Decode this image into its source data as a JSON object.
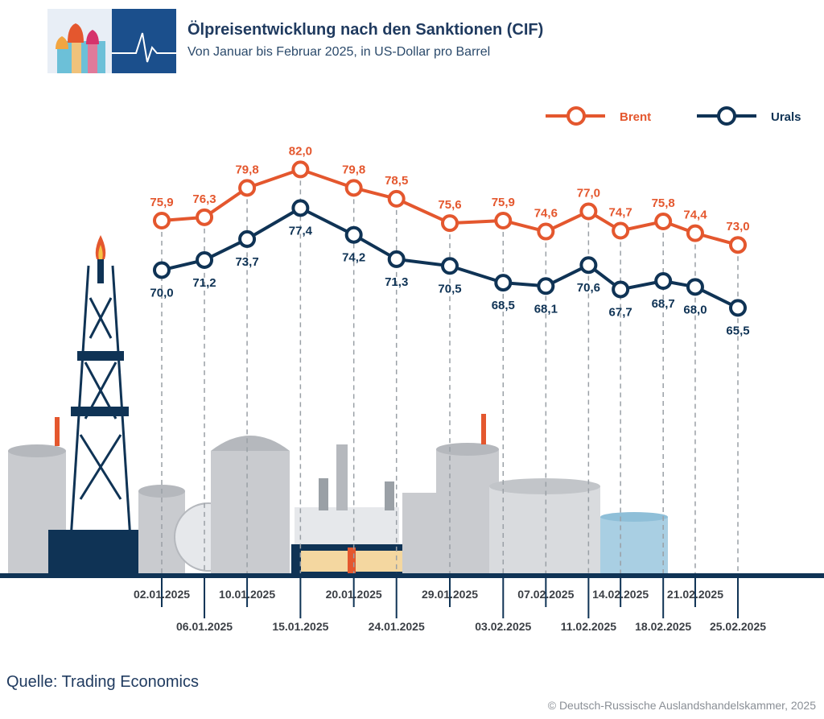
{
  "header": {
    "title": "Ölpreisentwicklung nach den Sanktionen (CIF)",
    "subtitle": "Von Januar bis Februar 2025, in US-Dollar pro Barrel"
  },
  "footer": {
    "source": "Quelle: Trading Economics",
    "copyright": "© Deutsch-Russische Auslandshandelskammer, 2025"
  },
  "colors": {
    "brent": "#e4572e",
    "urals": "#0f3355",
    "ground": "#0f3355",
    "title": "#1f3a5f"
  },
  "chart_data": {
    "type": "line",
    "title": "Ölpreisentwicklung nach den Sanktionen (CIF)",
    "ylabel": "US-Dollar pro Barrel",
    "ylim": [
      64,
      83
    ],
    "legend_position": "top-right",
    "categories": [
      "02.01.2025",
      "06.01.2025",
      "10.01.2025",
      "15.01.2025",
      "20.01.2025",
      "24.01.2025",
      "29.01.2025",
      "03.02.2025",
      "07.02.2025",
      "11.02.2025",
      "14.02.2025",
      "18.02.2025",
      "21.02.2025",
      "25.02.2025"
    ],
    "series": [
      {
        "name": "Brent",
        "values": [
          75.9,
          76.3,
          79.8,
          82.0,
          79.8,
          78.5,
          75.6,
          75.9,
          74.6,
          77.0,
          74.7,
          75.8,
          74.4,
          73.0
        ],
        "labels": [
          "75,9",
          "76,3",
          "79,8",
          "82,0",
          "79,8",
          "78,5",
          "75,6",
          "75,9",
          "74,6",
          "77,0",
          "74,7",
          "75,8",
          "74,4",
          "73,0"
        ]
      },
      {
        "name": "Urals",
        "values": [
          70.0,
          71.2,
          73.7,
          77.4,
          74.2,
          71.3,
          70.5,
          68.5,
          68.1,
          70.6,
          67.7,
          68.7,
          68.0,
          65.5
        ],
        "labels": [
          "70,0",
          "71,2",
          "73,7",
          "77,4",
          "74,2",
          "71,3",
          "70,5",
          "68,5",
          "68,1",
          "70,6",
          "67,7",
          "68,7",
          "68,0",
          "65,5"
        ]
      }
    ]
  }
}
